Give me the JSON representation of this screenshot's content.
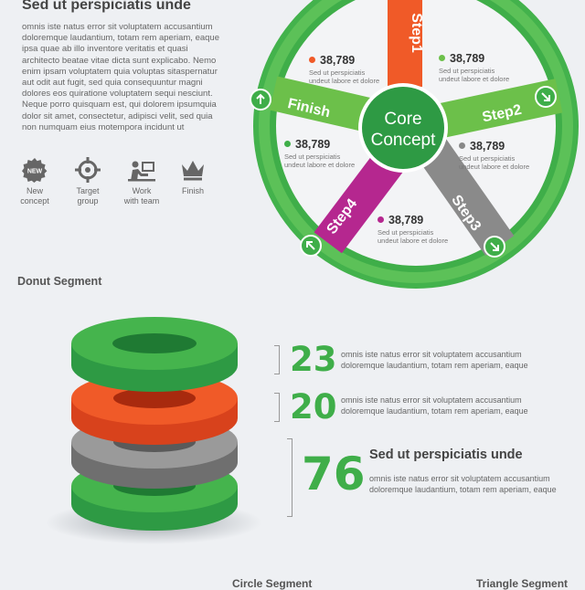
{
  "top": {
    "heading": "Sed ut perspiciatis unde",
    "paragraph": "omnis iste natus error sit voluptatem accusantium doloremque laudantium, totam rem aperiam, eaque ipsa quae ab illo inventore veritatis et quasi architecto beatae vitae dicta sunt explicabo. Nemo enim ipsam voluptatem quia voluptas sitaspernatur aut odit aut fugit, sed quia consequuntur magni dolores eos quiratione voluptatem sequi nesciunt. Neque porro quisquam est, qui dolorem ipsumquia dolor sit amet, consectetur, adipisci velit, sed quia non numquam eius motempora incidunt ut"
  },
  "icons": [
    {
      "label_line1": "New",
      "label_line2": "concept",
      "badge": "NEW",
      "icon": "new-badge-icon"
    },
    {
      "label_line1": "Target",
      "label_line2": "group",
      "icon": "target-icon"
    },
    {
      "label_line1": "Work",
      "label_line2": "with team",
      "icon": "work-icon"
    },
    {
      "label_line1": "Finish",
      "label_line2": "",
      "icon": "crown-icon"
    }
  ],
  "wheel": {
    "center_line1": "Core",
    "center_line2": "Concept",
    "spokes": {
      "step1": "Step1",
      "step2": "Step2",
      "step3": "Step3",
      "step4": "Step4",
      "finish": "Finish"
    },
    "stats": [
      {
        "value": "38,789",
        "cap1": "Sed ut perspiciatis",
        "cap2": "undeut labore et dolore",
        "color": "#f05a28"
      },
      {
        "value": "38,789",
        "cap1": "Sed ut perspiciatis",
        "cap2": "undeut labore et dolore",
        "color": "#6cc04a"
      },
      {
        "value": "38,789",
        "cap1": "Sed ut perspiciatis",
        "cap2": "undeut labore et dolore",
        "color": "#3fae49"
      },
      {
        "value": "38,789",
        "cap1": "Sed ut perspiciatis",
        "cap2": "undeut labore et dolore",
        "color": "#888888"
      },
      {
        "value": "38,789",
        "cap1": "Sed ut perspiciatis",
        "cap2": "undeut labore et dolore",
        "color": "#b5278f"
      }
    ],
    "colors": {
      "ring": "#3fae49",
      "step1": "#f05a28",
      "step2": "#6cc04a",
      "step3": "#8a8a8a",
      "step4": "#b5278f",
      "finish": "#6cc04a",
      "center": "#2e9a44"
    }
  },
  "donut": {
    "title": "Donut Segment",
    "items": [
      {
        "number": "23",
        "text1": "omnis iste natus error sit voluptatem accusantium",
        "text2": "doloremque laudantium, totam rem aperiam, eaque"
      },
      {
        "number": "20",
        "text1": "omnis iste natus error sit voluptatem accusantium",
        "text2": "doloremque laudantium, totam rem aperiam, eaque"
      },
      {
        "number": "76",
        "heading": "Sed ut perspiciatis unde",
        "text1": "omnis iste natus error sit voluptatem accusantium",
        "text2": "doloremque laudantium, totam rem aperiam, eaque"
      }
    ],
    "layer_colors": [
      "#3fae49",
      "#f05a28",
      "#8a8a8a",
      "#3fae49"
    ]
  },
  "footer": {
    "left": "Circle Segment",
    "right": "Triangle Segment"
  }
}
